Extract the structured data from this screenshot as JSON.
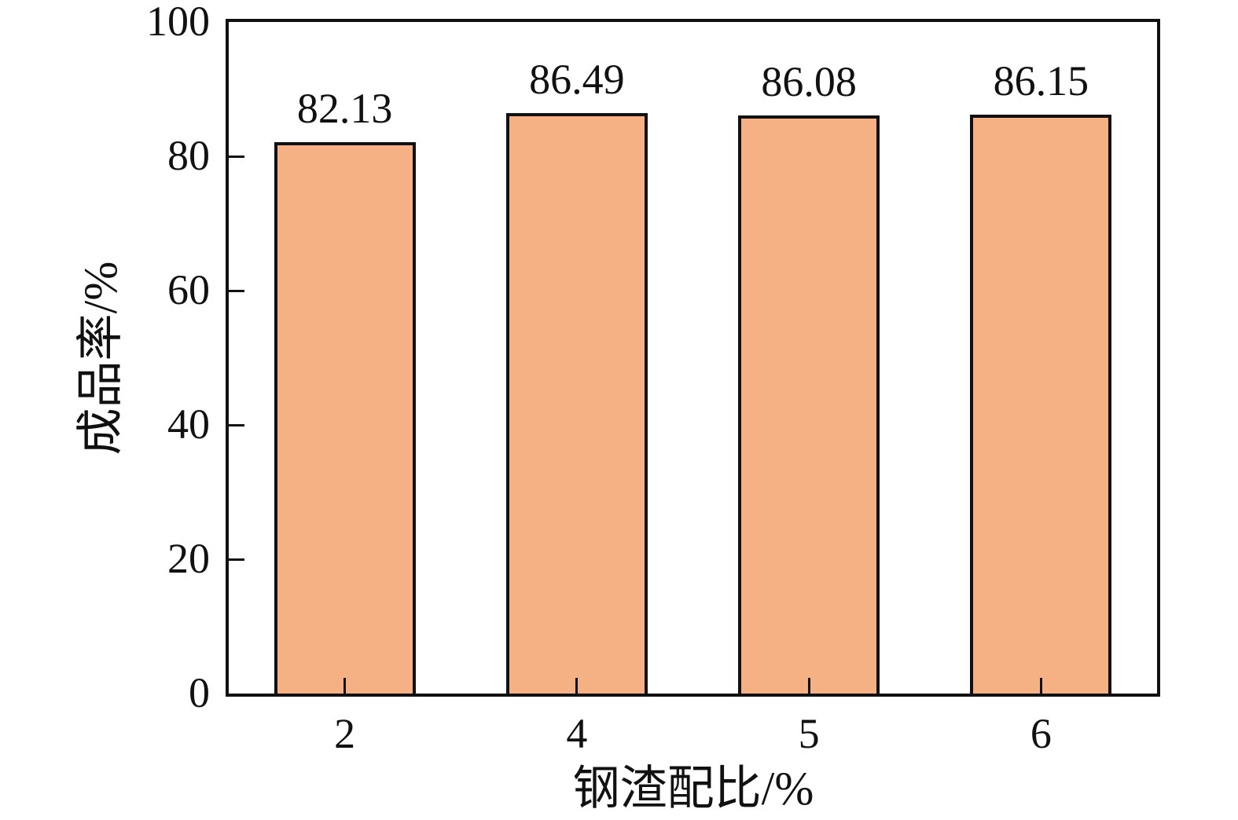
{
  "chart_data": {
    "type": "bar",
    "categories": [
      "2",
      "4",
      "5",
      "6"
    ],
    "values": [
      82.13,
      86.49,
      86.08,
      86.15
    ],
    "value_labels": [
      "82.13",
      "86.49",
      "86.08",
      "86.15"
    ],
    "title": "",
    "xlabel": "钢渣配比/%",
    "ylabel": "成品率/%",
    "ylim": [
      0,
      100
    ],
    "yticks": [
      0,
      20,
      40,
      60,
      80,
      100
    ],
    "grid": "off",
    "legend": "none",
    "bar_fill_color": "#F5B183",
    "bar_edge_color": "#111111",
    "axis_color": "#111111",
    "text_color": "#111111",
    "background_color": "#FFFFFF"
  }
}
